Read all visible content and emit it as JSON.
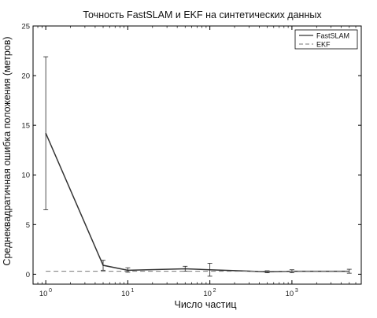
{
  "chart_data": {
    "type": "line",
    "title": "Точность FastSLAM и EKF на синтетических данных",
    "xlabel": "Число частиц",
    "ylabel": "Среднеквадратичная ошибка положения (метров)",
    "x_scale": "log",
    "xlim": [
      0.7,
      7000
    ],
    "ylim": [
      -1,
      25
    ],
    "x_ticks": [
      {
        "value": 1,
        "base": "10",
        "exp": "0"
      },
      {
        "value": 10,
        "base": "10",
        "exp": "1"
      },
      {
        "value": 100,
        "base": "10",
        "exp": "2"
      },
      {
        "value": 1000,
        "base": "10",
        "exp": "3"
      }
    ],
    "y_ticks": [
      {
        "value": 0,
        "label": "0"
      },
      {
        "value": 5,
        "label": "5"
      },
      {
        "value": 10,
        "label": "10"
      },
      {
        "value": 15,
        "label": "15"
      },
      {
        "value": 20,
        "label": "20"
      },
      {
        "value": 25,
        "label": "25"
      }
    ],
    "grid": false,
    "legend_position": "top-right",
    "series": [
      {
        "name": "FastSLAM",
        "style": "solid",
        "color": "#333333",
        "points": [
          {
            "x": 1,
            "y": 14.2,
            "err_low": 6.5,
            "err_high": 21.9
          },
          {
            "x": 5,
            "y": 0.9,
            "err_low": 0.4,
            "err_high": 1.4
          },
          {
            "x": 10,
            "y": 0.4,
            "err_low": 0.2,
            "err_high": 0.65
          },
          {
            "x": 50,
            "y": 0.55,
            "err_low": 0.3,
            "err_high": 0.8
          },
          {
            "x": 100,
            "y": 0.45,
            "err_low": -0.2,
            "err_high": 1.1
          },
          {
            "x": 500,
            "y": 0.25,
            "err_low": 0.15,
            "err_high": 0.35
          },
          {
            "x": 1000,
            "y": 0.3,
            "err_low": 0.15,
            "err_high": 0.45
          },
          {
            "x": 5000,
            "y": 0.3,
            "err_low": 0.1,
            "err_high": 0.5
          }
        ]
      },
      {
        "name": "EKF",
        "style": "dashed",
        "color": "#777777",
        "points": [
          {
            "x": 1,
            "y": 0.3
          },
          {
            "x": 5000,
            "y": 0.3
          }
        ]
      }
    ]
  }
}
